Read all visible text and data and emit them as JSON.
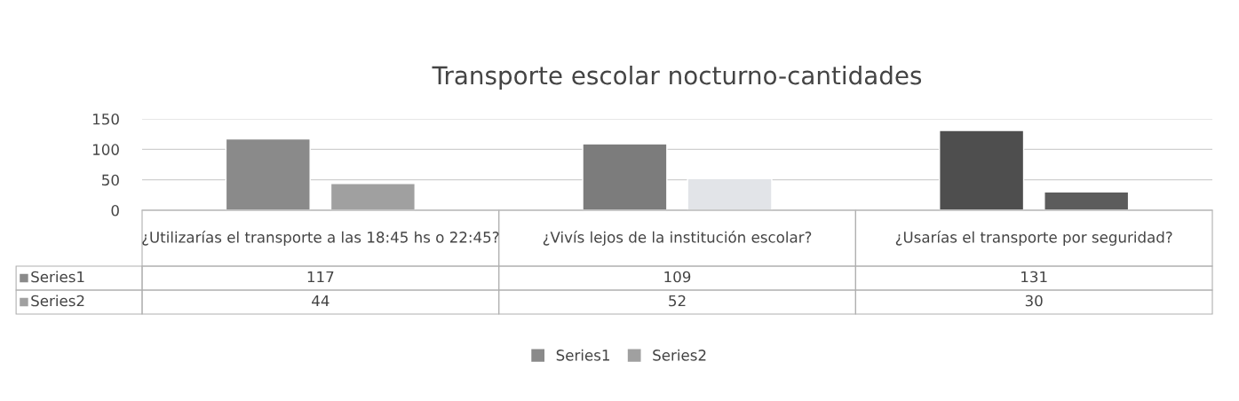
{
  "chart_data": {
    "type": "bar",
    "title": "Transporte escolar nocturno-cantidades",
    "categories": [
      "¿Utilizarías el transporte a las 18:45 hs o 22:45?",
      "¿Vivís lejos de la institución escolar?",
      "¿Usarías el transporte por seguridad?"
    ],
    "series": [
      {
        "name": "Series1",
        "colors": [
          "#8a8a8a",
          "#7c7c7c",
          "#4e4e4e"
        ],
        "values": [
          117,
          109,
          131
        ]
      },
      {
        "name": "Series2",
        "colors": [
          "#a0a0a0",
          "#e2e4e8",
          "#5c5c5c"
        ],
        "values": [
          44,
          52,
          30
        ]
      }
    ],
    "ylim": [
      0,
      150
    ],
    "yticks": [
      0,
      50,
      100,
      150
    ],
    "grid": "y",
    "legend": "bottom",
    "data_labels": true
  }
}
